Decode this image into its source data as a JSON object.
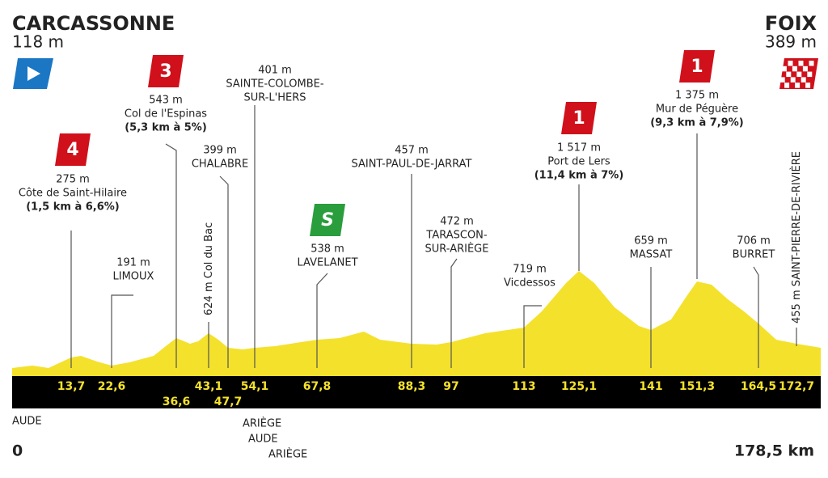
{
  "start": {
    "name": "CARCASSONNE",
    "altitude": "118 m"
  },
  "finish": {
    "name": "FOIX",
    "altitude": "389 m"
  },
  "points": [
    {
      "km": "13,7",
      "altitude": "275 m",
      "name": [
        "Côte de Saint-Hilaire"
      ],
      "detail": "(1,5 km à 6,6%)",
      "category": "4"
    },
    {
      "km": "22,6",
      "altitude": "191 m",
      "name": [
        "LIMOUX"
      ]
    },
    {
      "km": "36,6",
      "altitude": "543 m",
      "name": [
        "Col de l'Espinas"
      ],
      "detail": "(5,3 km à 5%)",
      "category": "3"
    },
    {
      "km": "43,1",
      "altitude": "624 m",
      "name": [
        "Col du Bac"
      ]
    },
    {
      "km": "47,7",
      "altitude": "399 m",
      "name": [
        "CHALABRE"
      ]
    },
    {
      "km": "54,1",
      "altitude": "401 m",
      "name": [
        "SAINTE-COLOMBE-",
        "SUR-L'HERS"
      ]
    },
    {
      "km": "67,8",
      "altitude": "538 m",
      "name": [
        "LAVELANET"
      ],
      "category": "S"
    },
    {
      "km": "88,3",
      "altitude": "457 m",
      "name": [
        "SAINT-PAUL-DE-JARRAT"
      ]
    },
    {
      "km": "97",
      "altitude": "472 m",
      "name": [
        "TARASCON-",
        "SUR-ARIÈGE"
      ]
    },
    {
      "km": "113",
      "altitude": "719 m",
      "name": [
        "Vicdessos"
      ]
    },
    {
      "km": "125,1",
      "altitude": "1 517 m",
      "name": [
        "Port de Lers"
      ],
      "detail": "(11,4 km à 7%)",
      "category": "1"
    },
    {
      "km": "141",
      "altitude": "659 m",
      "name": [
        "MASSAT"
      ]
    },
    {
      "km": "151,3",
      "altitude": "1 375 m",
      "name": [
        "Mur de Péguère"
      ],
      "detail": "(9,3 km à 7,9%)",
      "category": "1"
    },
    {
      "km": "164,5",
      "altitude": "706 m",
      "name": [
        "BURRET"
      ]
    },
    {
      "km": "172,7",
      "altitude": "455 m",
      "name": [
        "SAINT-PIERRE-DE-RIVIÈRE"
      ]
    }
  ],
  "departments": [
    "AUDE",
    "ARIÈGE",
    "AUDE",
    "ARIÈGE"
  ],
  "distance_start": "0",
  "distance_end": "178,5 km"
}
